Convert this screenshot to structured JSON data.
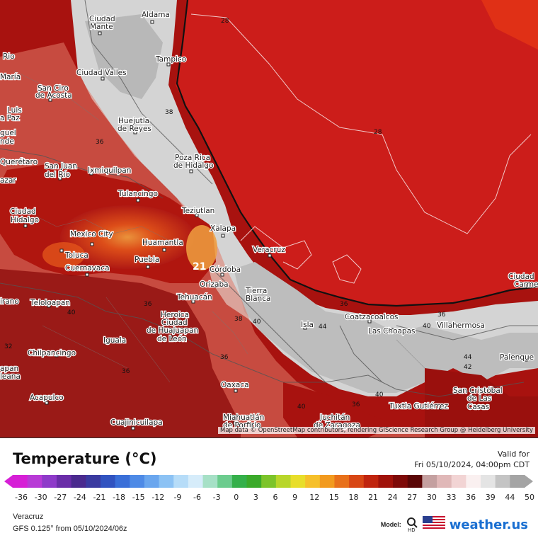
{
  "legend": {
    "title": "Temperature (°C)",
    "valid_label": "Valid for",
    "valid_time": "Fri 05/10/2024, 04:00pm CDT",
    "ticks": [
      "-36",
      "-30",
      "-27",
      "-24",
      "-21",
      "-18",
      "-15",
      "-12",
      "-9",
      "-6",
      "-3",
      "0",
      "3",
      "6",
      "9",
      "12",
      "15",
      "18",
      "21",
      "24",
      "27",
      "30",
      "33",
      "36",
      "39",
      "44",
      "50"
    ],
    "colors": [
      "#d61fd6",
      "#b83ad6",
      "#8e3ac9",
      "#6a2da8",
      "#4a2a8e",
      "#3a3aa0",
      "#3153c0",
      "#3a6fd8",
      "#4e8ae6",
      "#6aa6ee",
      "#8cc2f4",
      "#b6dcf8",
      "#d6ecfa",
      "#a6e0c6",
      "#6ccc8e",
      "#34b04a",
      "#3aaa2a",
      "#7cc42a",
      "#b8d62a",
      "#e8de2a",
      "#f6c02a",
      "#f29a1e",
      "#e8701a",
      "#d84614",
      "#c0240e",
      "#a0120a",
      "#7e0a08",
      "#5a0606",
      "#c4a0a0",
      "#e0b8b8",
      "#f2d4d4",
      "#faf0f0",
      "#e4e4e4",
      "#c4c4c4",
      "#a4a4a4"
    ]
  },
  "region": "Veracruz",
  "model_info": "GFS 0.125° from  05/10/2024/06z",
  "brand": {
    "model_label": "Model:",
    "hd": "HD",
    "name": "weather.us"
  },
  "attribution": "Map data © OpenStreetMap contributors, rendering GIScience Research Group @ Heidelberg University",
  "colors": {
    "sea": "#cc1d1a",
    "land_hot": "#a01412",
    "land_warm": "#e06858",
    "land_cool": "#d8d8d8",
    "grey_cold": "#b0b0b0",
    "orange": "#e2541a"
  },
  "cities": [
    {
      "name": "Aldama"
    },
    {
      "name": "Ciudad"
    },
    {
      "name": "Mante"
    },
    {
      "name": "Tampico"
    },
    {
      "name": "Ciudad Valles"
    },
    {
      "name": "San Ciro"
    },
    {
      "name": "de Acosta"
    },
    {
      "name": "Huejutla"
    },
    {
      "name": "de Reyes"
    },
    {
      "name": "Poza Rica"
    },
    {
      "name": "de Hidalgo"
    },
    {
      "name": "Querétaro"
    },
    {
      "name": "San Juan"
    },
    {
      "name": "del Río"
    },
    {
      "name": "Ixmiquilpan"
    },
    {
      "name": "Tulancingo"
    },
    {
      "name": "Ciudad"
    },
    {
      "name": "Hidalgo"
    },
    {
      "name": "Teziutlan"
    },
    {
      "name": "Mexico City"
    },
    {
      "name": "Xalapa"
    },
    {
      "name": "Huamantla"
    },
    {
      "name": "Veracruz"
    },
    {
      "name": "Toluca"
    },
    {
      "name": "Puebla"
    },
    {
      "name": "Cuernavaca"
    },
    {
      "name": "Córdoba"
    },
    {
      "name": "Orizaba"
    },
    {
      "name": "Tierra"
    },
    {
      "name": "Blanca"
    },
    {
      "name": "Tehuacán"
    },
    {
      "name": "Teloloapan"
    },
    {
      "name": "Heroica"
    },
    {
      "name": "Ciudad"
    },
    {
      "name": "de Huajuapan"
    },
    {
      "name": "de León"
    },
    {
      "name": "Coatzacoalcos"
    },
    {
      "name": "Las Choapas"
    },
    {
      "name": "Villahermosa"
    },
    {
      "name": "Isla"
    },
    {
      "name": "Iguala"
    },
    {
      "name": "Chilpancingo"
    },
    {
      "name": "Oaxaca"
    },
    {
      "name": "Palenque"
    },
    {
      "name": "Acapulco"
    },
    {
      "name": "Tuxtla Gutiérrez"
    },
    {
      "name": "San Cristóbal"
    },
    {
      "name": "de Las"
    },
    {
      "name": "Casas"
    },
    {
      "name": "Miahuatlán"
    },
    {
      "name": "de Porfirio"
    },
    {
      "name": "Juchitán"
    },
    {
      "name": "de Zaragoza"
    },
    {
      "name": "Cuajinicuilapa"
    },
    {
      "name": "Ciudad"
    },
    {
      "name": "Carme"
    },
    {
      "name": "Luis"
    },
    {
      "name": "a Paz"
    },
    {
      "name": "María"
    },
    {
      "name": "Rio"
    },
    {
      "name": "guel"
    },
    {
      "name": "nde"
    },
    {
      "name": "azar"
    },
    {
      "name": "irano"
    },
    {
      "name": "apan"
    },
    {
      "name": "leana"
    }
  ],
  "contour_labels": [
    "28",
    "28",
    "36",
    "38",
    "40",
    "36",
    "38",
    "40",
    "36",
    "36",
    "40",
    "44",
    "40",
    "44",
    "42",
    "36",
    "36",
    "40",
    "32",
    "21",
    "36"
  ]
}
